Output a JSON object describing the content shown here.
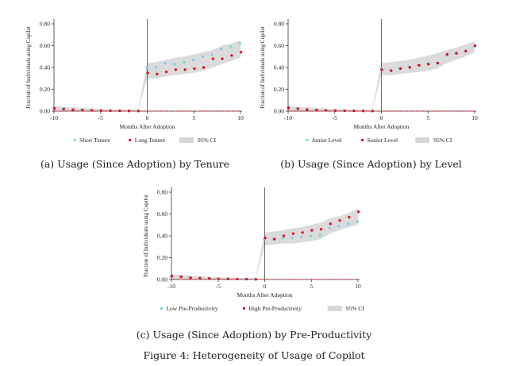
{
  "figure_caption": "Figure 4: Heterogeneity of Usage of Copilot",
  "chart_data": [
    {
      "type": "scatter",
      "caption": "(a) Usage (Since Adoption) by Tenure",
      "xlabel": "Months After Adoption",
      "ylabel": "Fraction of Individuals using Copilot",
      "xlim": [
        -10,
        10
      ],
      "ylim": [
        0,
        0.8
      ],
      "xticks": [
        -10,
        -5,
        0,
        5,
        10
      ],
      "xtick_labels": [
        "-10",
        "-5",
        "0",
        "5",
        "10"
      ],
      "yticks": [
        0,
        0.2,
        0.4,
        0.6,
        0.8
      ],
      "ytick_labels": [
        "0.00",
        "0.20",
        "0.40",
        "0.60",
        "0.80"
      ],
      "reference_line_x": 0,
      "reference_line_y": 0,
      "x": [
        -10,
        -9,
        -8,
        -7,
        -6,
        -5,
        -4,
        -3,
        -2,
        -1,
        0,
        1,
        2,
        3,
        4,
        5,
        6,
        7,
        8,
        9,
        10
      ],
      "series": [
        {
          "name": "Short Tenure",
          "color": "#7ecfe3",
          "values": [
            0.03,
            0.02,
            0.015,
            0.01,
            0.008,
            0.005,
            0.004,
            0.003,
            0.002,
            0.001,
            0.4,
            0.4,
            0.44,
            0.43,
            0.45,
            0.47,
            0.5,
            0.52,
            0.57,
            0.59,
            0.62
          ]
        },
        {
          "name": "Long Tenure",
          "color": "#e3001b",
          "values": [
            0.025,
            0.02,
            0.013,
            0.01,
            0.007,
            0.005,
            0.004,
            0.003,
            0.002,
            0.001,
            0.35,
            0.34,
            0.36,
            0.38,
            0.38,
            0.39,
            0.4,
            0.48,
            0.48,
            0.51,
            0.54
          ]
        }
      ],
      "ci_band": {
        "upper": [
          0.05,
          0.04,
          0.035,
          0.03,
          0.025,
          0.02,
          0.018,
          0.015,
          0.012,
          0.01,
          0.44,
          0.45,
          0.47,
          0.49,
          0.5,
          0.52,
          0.54,
          0.56,
          0.6,
          0.62,
          0.65
        ],
        "lower": [
          0.005,
          0.003,
          0.002,
          0.001,
          0.0,
          0.0,
          0.0,
          0.0,
          0.0,
          0.0,
          0.3,
          0.3,
          0.32,
          0.33,
          0.34,
          0.35,
          0.37,
          0.4,
          0.43,
          0.46,
          0.49
        ]
      },
      "legend": [
        "Short Tenure",
        "Long Tenure",
        "95% CI"
      ]
    },
    {
      "type": "scatter",
      "caption": "(b) Usage (Since Adoption) by Level",
      "xlabel": "Months After Adoption",
      "ylabel": "Fraction of Individuals using Copilot",
      "xlim": [
        -10,
        10
      ],
      "ylim": [
        0,
        0.8
      ],
      "xticks": [
        -10,
        -5,
        0,
        5,
        10
      ],
      "xtick_labels": [
        "-10",
        "-5",
        "0",
        "5",
        "10"
      ],
      "yticks": [
        0,
        0.2,
        0.4,
        0.6,
        0.8
      ],
      "ytick_labels": [
        "0.00",
        "0.20",
        "0.40",
        "0.60",
        "0.80"
      ],
      "reference_line_x": 0,
      "reference_line_y": 0,
      "x": [
        -10,
        -9,
        -8,
        -7,
        -6,
        -5,
        -4,
        -3,
        -2,
        -1,
        0,
        1,
        2,
        3,
        4,
        5,
        6,
        7,
        8,
        9,
        10
      ],
      "series": [
        {
          "name": "Junior Level",
          "color": "#7ecfe3",
          "values": [
            0.03,
            0.025,
            0.015,
            0.01,
            0.008,
            0.005,
            0.004,
            0.003,
            0.002,
            0.001,
            0.39,
            0.38,
            0.39,
            0.41,
            0.42,
            0.44,
            0.44,
            0.51,
            0.53,
            0.55,
            0.59
          ]
        },
        {
          "name": "Senior Level",
          "color": "#e3001b",
          "values": [
            0.03,
            0.022,
            0.014,
            0.01,
            0.007,
            0.005,
            0.004,
            0.003,
            0.002,
            0.001,
            0.38,
            0.37,
            0.39,
            0.4,
            0.42,
            0.43,
            0.44,
            0.52,
            0.53,
            0.55,
            0.6
          ]
        }
      ],
      "ci_band": {
        "upper": [
          0.05,
          0.04,
          0.035,
          0.03,
          0.025,
          0.02,
          0.018,
          0.015,
          0.012,
          0.01,
          0.44,
          0.45,
          0.46,
          0.47,
          0.49,
          0.51,
          0.53,
          0.56,
          0.58,
          0.61,
          0.64
        ],
        "lower": [
          0.005,
          0.003,
          0.002,
          0.001,
          0.0,
          0.0,
          0.0,
          0.0,
          0.0,
          0.0,
          0.33,
          0.33,
          0.34,
          0.35,
          0.36,
          0.37,
          0.39,
          0.44,
          0.47,
          0.5,
          0.54
        ]
      },
      "legend": [
        "Junior Level",
        "Senior Level",
        "95% CI"
      ]
    },
    {
      "type": "scatter",
      "caption": "(c) Usage (Since Adoption) by Pre-Productivity",
      "xlabel": "Months After Adoption",
      "ylabel": "Fraction of Individuals using Copilot",
      "xlim": [
        -10,
        10
      ],
      "ylim": [
        0,
        0.8
      ],
      "xticks": [
        -10,
        -5,
        0,
        5,
        10
      ],
      "xtick_labels": [
        "-10",
        "-5",
        "0",
        "5",
        "10"
      ],
      "yticks": [
        0,
        0.2,
        0.4,
        0.6,
        0.8
      ],
      "ytick_labels": [
        "0.00",
        "0.20",
        "0.40",
        "0.60",
        "0.80"
      ],
      "reference_line_x": 0,
      "reference_line_y": 0,
      "x": [
        -10,
        -9,
        -8,
        -7,
        -6,
        -5,
        -4,
        -3,
        -2,
        -1,
        0,
        1,
        2,
        3,
        4,
        5,
        6,
        7,
        8,
        9,
        10
      ],
      "series": [
        {
          "name": "Low Pre-Productivity",
          "color": "#7ecfe3",
          "values": [
            0.03,
            0.025,
            0.015,
            0.01,
            0.008,
            0.005,
            0.004,
            0.003,
            0.002,
            0.001,
            0.37,
            0.37,
            0.38,
            0.38,
            0.39,
            0.4,
            0.41,
            0.47,
            0.49,
            0.51,
            0.53
          ]
        },
        {
          "name": "High Pre-Productivity",
          "color": "#e3001b",
          "values": [
            0.03,
            0.025,
            0.016,
            0.012,
            0.009,
            0.006,
            0.005,
            0.004,
            0.003,
            0.002,
            0.38,
            0.37,
            0.4,
            0.42,
            0.43,
            0.45,
            0.46,
            0.51,
            0.54,
            0.57,
            0.62
          ]
        }
      ],
      "ci_band": {
        "upper": [
          0.05,
          0.04,
          0.035,
          0.03,
          0.025,
          0.02,
          0.018,
          0.015,
          0.012,
          0.01,
          0.43,
          0.44,
          0.45,
          0.47,
          0.48,
          0.5,
          0.52,
          0.56,
          0.58,
          0.61,
          0.65
        ],
        "lower": [
          0.005,
          0.003,
          0.002,
          0.001,
          0.0,
          0.0,
          0.0,
          0.0,
          0.0,
          0.0,
          0.31,
          0.32,
          0.33,
          0.33,
          0.34,
          0.35,
          0.37,
          0.42,
          0.45,
          0.48,
          0.5
        ]
      },
      "legend": [
        "Low Pre-Productivity",
        "High Pre-Productivity",
        "95% CI"
      ]
    }
  ]
}
